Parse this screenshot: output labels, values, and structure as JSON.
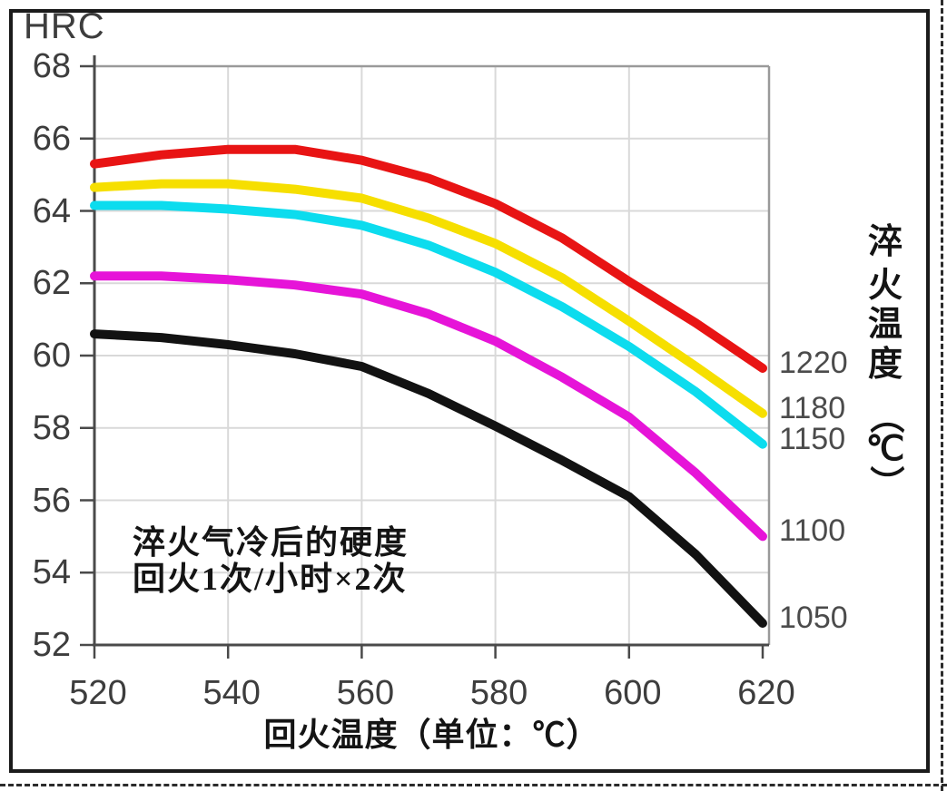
{
  "figure": {
    "hrc_label": "HRC",
    "x_axis_title": "回火温度（单位：℃）",
    "right_axis_title": "淬火温度（℃）",
    "right_axis_chars": [
      "淬",
      "火",
      "温",
      "度",
      "（",
      "℃",
      "）"
    ],
    "annotation_line1": "淬火气冷后的硬度",
    "annotation_line2": "回火1次/小时×2次"
  },
  "chart_data": {
    "type": "line",
    "title": "",
    "xlabel": "回火温度（单位：℃）",
    "ylabel": "HRC",
    "right_axis_label": "淬火温度（℃）",
    "xlim": [
      520,
      620
    ],
    "ylim": [
      52,
      68
    ],
    "x_ticks": [
      520,
      540,
      560,
      580,
      600,
      620
    ],
    "y_ticks": [
      68,
      66,
      64,
      62,
      60,
      58,
      56,
      54,
      52
    ],
    "grid": true,
    "legend_position": "right-outside",
    "annotations": [
      "淬火气冷后的硬度",
      "回火1次/小时×2次"
    ],
    "x": [
      520,
      530,
      540,
      550,
      560,
      570,
      580,
      590,
      600,
      610,
      620
    ],
    "series": [
      {
        "name": "1220",
        "color": "#e81414",
        "values": [
          65.3,
          65.55,
          65.7,
          65.7,
          65.4,
          64.9,
          64.2,
          63.25,
          62.05,
          60.9,
          59.65
        ]
      },
      {
        "name": "1180",
        "color": "#f6df00",
        "values": [
          64.65,
          64.75,
          64.75,
          64.6,
          64.35,
          63.8,
          63.1,
          62.15,
          60.95,
          59.7,
          58.4
        ]
      },
      {
        "name": "1150",
        "color": "#0cdcee",
        "values": [
          64.15,
          64.15,
          64.05,
          63.9,
          63.6,
          63.05,
          62.3,
          61.35,
          60.25,
          59.0,
          57.55
        ]
      },
      {
        "name": "1100",
        "color": "#e614d8",
        "values": [
          62.2,
          62.2,
          62.1,
          61.95,
          61.7,
          61.15,
          60.4,
          59.4,
          58.3,
          56.75,
          55.0
        ]
      },
      {
        "name": "1050",
        "color": "#121212",
        "values": [
          60.6,
          60.5,
          60.3,
          60.05,
          59.7,
          58.95,
          58.05,
          57.1,
          56.1,
          54.5,
          52.6
        ]
      }
    ],
    "styles": {
      "grid_color": "#d9d9d9",
      "boundary_color": "#9a9a9a",
      "axis_color": "#4a4a4a",
      "curve_width": 10
    }
  }
}
